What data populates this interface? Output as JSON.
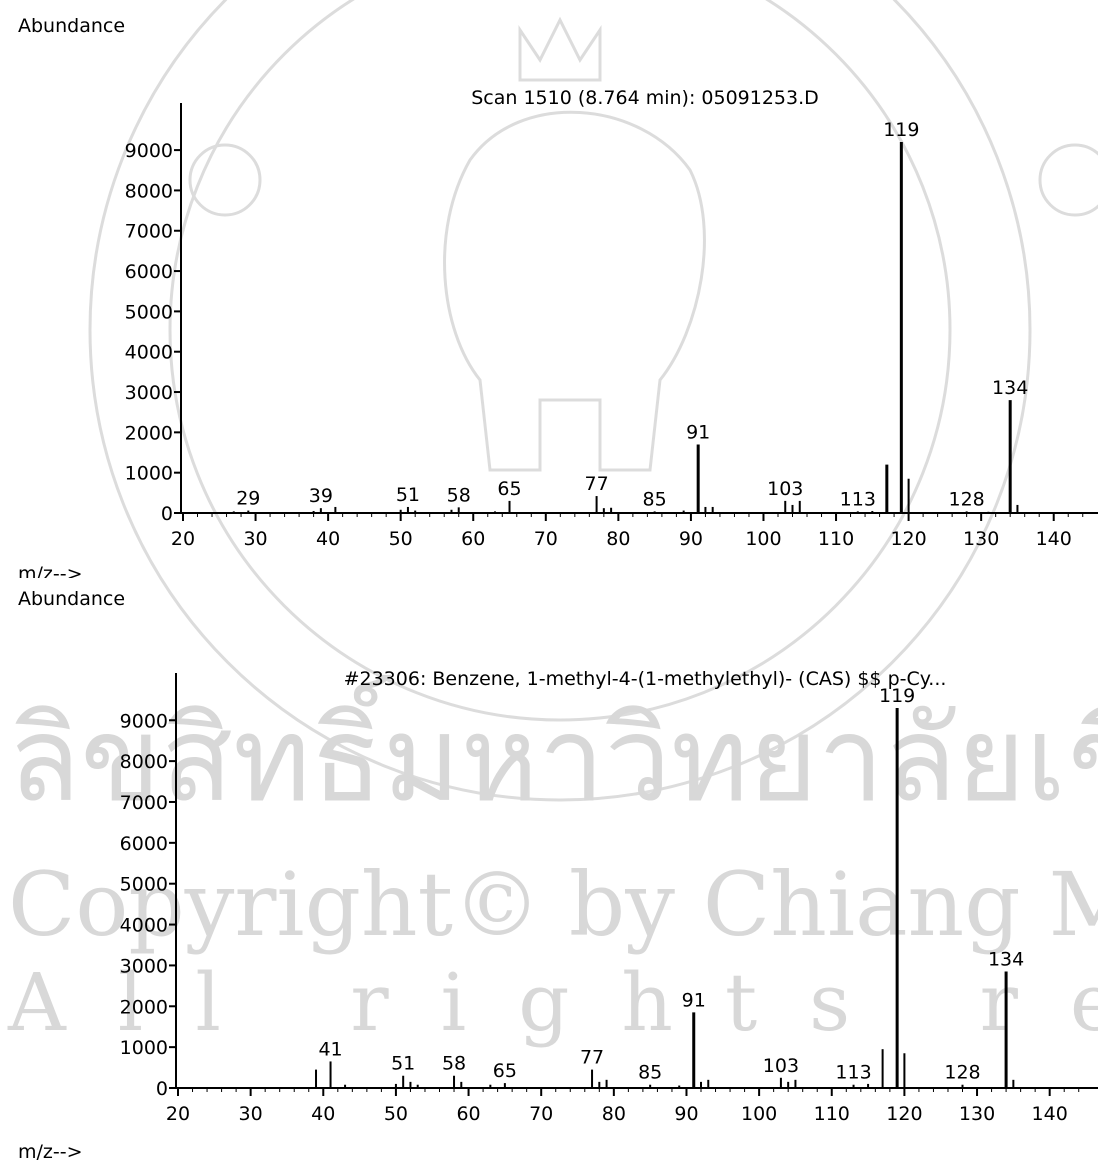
{
  "chart_data": [
    {
      "type": "bar",
      "title": "Scan 1510 (8.764 min): 05091253.D",
      "ylabel": "Abundance",
      "xlabel": "m/z-->",
      "xlim": [
        20,
        145
      ],
      "ylim": [
        0,
        9300
      ],
      "xticks": [
        20,
        30,
        40,
        50,
        60,
        70,
        80,
        90,
        100,
        110,
        120,
        130,
        140
      ],
      "yticks": [
        0,
        1000,
        2000,
        3000,
        4000,
        5000,
        6000,
        7000,
        8000,
        9000
      ],
      "x": [
        27,
        29,
        38,
        39,
        41,
        50,
        51,
        52,
        57,
        58,
        63,
        65,
        77,
        78,
        79,
        85,
        89,
        91,
        92,
        93,
        103,
        104,
        105,
        113,
        115,
        117,
        119,
        120,
        128,
        131,
        134,
        135
      ],
      "values": [
        40,
        60,
        50,
        120,
        150,
        80,
        150,
        60,
        80,
        140,
        40,
        300,
        420,
        120,
        130,
        40,
        60,
        1700,
        150,
        150,
        300,
        200,
        300,
        40,
        50,
        1200,
        9200,
        850,
        40,
        30,
        2800,
        200
      ],
      "peak_labels": [
        {
          "x": 29,
          "text": "29"
        },
        {
          "x": 39,
          "text": "39"
        },
        {
          "x": 51,
          "text": "51"
        },
        {
          "x": 58,
          "text": "58"
        },
        {
          "x": 65,
          "text": "65"
        },
        {
          "x": 77,
          "text": "77"
        },
        {
          "x": 85,
          "text": "85"
        },
        {
          "x": 91,
          "text": "91"
        },
        {
          "x": 103,
          "text": "103"
        },
        {
          "x": 113,
          "text": "113"
        },
        {
          "x": 119,
          "text": "119"
        },
        {
          "x": 128,
          "text": "128"
        },
        {
          "x": 134,
          "text": "134"
        }
      ]
    },
    {
      "type": "bar",
      "title": "#23306: Benzene, 1-methyl-4-(1-methylethyl)- (CAS) $$ p-Cy...",
      "ylabel": "Abundance",
      "xlabel": "m/z-->",
      "xlim": [
        20,
        145
      ],
      "ylim": [
        0,
        9300
      ],
      "xticks": [
        20,
        30,
        40,
        50,
        60,
        70,
        80,
        90,
        100,
        110,
        120,
        130,
        140
      ],
      "yticks": [
        0,
        1000,
        2000,
        3000,
        4000,
        5000,
        6000,
        7000,
        8000,
        9000
      ],
      "x": [
        39,
        41,
        43,
        50,
        51,
        52,
        53,
        58,
        59,
        63,
        65,
        77,
        78,
        79,
        85,
        89,
        91,
        92,
        93,
        103,
        104,
        105,
        113,
        115,
        117,
        119,
        120,
        128,
        134,
        135
      ],
      "values": [
        450,
        650,
        80,
        100,
        300,
        150,
        80,
        300,
        150,
        80,
        120,
        450,
        150,
        200,
        80,
        60,
        1850,
        150,
        200,
        250,
        150,
        200,
        80,
        100,
        950,
        9300,
        850,
        80,
        2850,
        200
      ],
      "peak_labels": [
        {
          "x": 41,
          "text": "41"
        },
        {
          "x": 51,
          "text": "51"
        },
        {
          "x": 58,
          "text": "58"
        },
        {
          "x": 65,
          "text": "65"
        },
        {
          "x": 77,
          "text": "77"
        },
        {
          "x": 85,
          "text": "85"
        },
        {
          "x": 91,
          "text": "91"
        },
        {
          "x": 103,
          "text": "103"
        },
        {
          "x": 113,
          "text": "113"
        },
        {
          "x": 119,
          "text": "119"
        },
        {
          "x": 128,
          "text": "128"
        },
        {
          "x": 134,
          "text": "134"
        }
      ]
    }
  ],
  "watermark": {
    "lines": [
      "ลิขสิทธิ์มหาวิทยาลัยเชียงใหม่",
      "Copyright© by Chiang Mai University",
      "All rights reserved"
    ],
    "color": "#d8d8d8"
  }
}
